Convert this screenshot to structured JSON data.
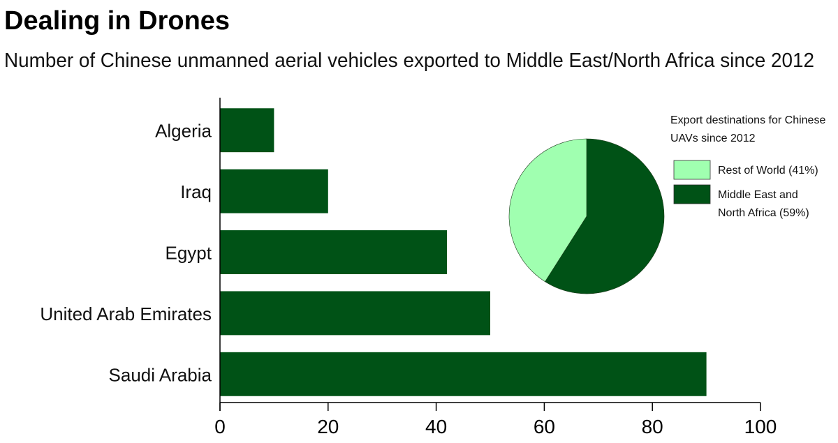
{
  "chart_data": [
    {
      "type": "bar",
      "orientation": "horizontal",
      "title": "Dealing in Drones",
      "subtitle": "Number of Chinese unmanned aerial vehicles exported to Middle East/North Africa since 2012",
      "categories": [
        "Algeria",
        "Iraq",
        "Egypt",
        "United Arab Emirates",
        "Saudi Arabia"
      ],
      "values": [
        10,
        20,
        42,
        50,
        90
      ],
      "xlim": [
        0,
        100
      ],
      "xticks": [
        0,
        20,
        40,
        60,
        80,
        100
      ],
      "xlabel": "",
      "ylabel": "",
      "grid": false,
      "bar_color": "#005216"
    },
    {
      "type": "pie",
      "legend_title_lines": [
        "Export destinations for Chinese",
        "UAVs since 2012"
      ],
      "legend_placement": "right",
      "slices": [
        {
          "label_lines": [
            "Rest of World (41%)"
          ],
          "value": 41,
          "color": "#a0ffb0"
        },
        {
          "label_lines": [
            "Middle East and",
            "North Africa (59%)"
          ],
          "value": 59,
          "color": "#005216"
        }
      ]
    }
  ]
}
